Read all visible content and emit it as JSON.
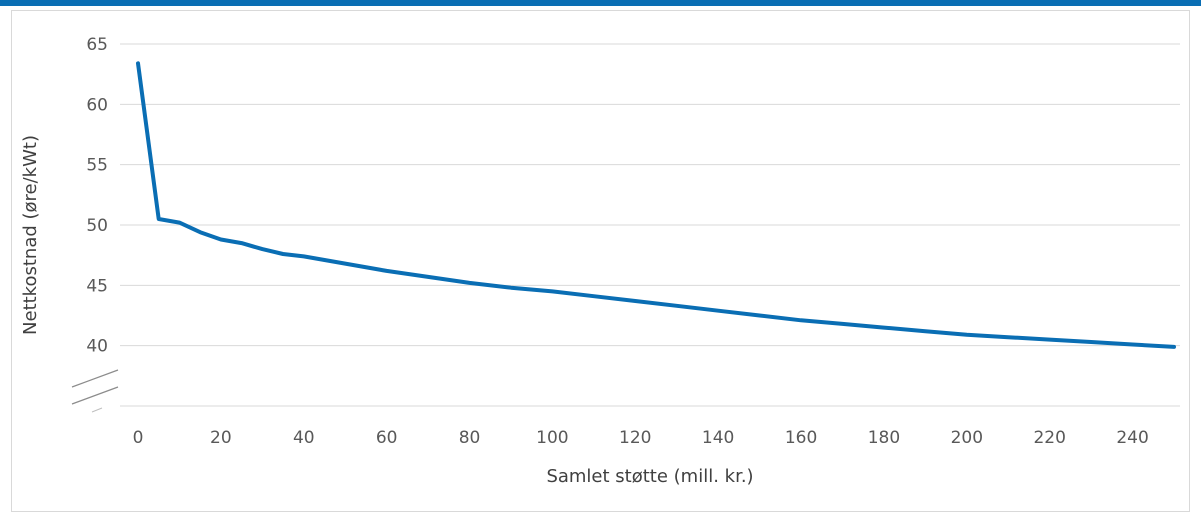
{
  "colors": {
    "accent": "#0a6eb4",
    "line": "#0a6eb4",
    "grid": "#d9d9d9",
    "text": "#595959"
  },
  "chart_data": {
    "type": "line",
    "title": "",
    "xlabel": "Samlet støtte (mill. kr.)",
    "ylabel": "Nettkostnad (øre/kWt)",
    "xlim": [
      0,
      250
    ],
    "ylim": [
      35,
      65
    ],
    "x_ticks": [
      "0",
      "20",
      "40",
      "60",
      "80",
      "100",
      "120",
      "140",
      "160",
      "180",
      "200",
      "220",
      "240"
    ],
    "y_ticks": [
      "40",
      "45",
      "50",
      "55",
      "60",
      "65"
    ],
    "y_axis_break": true,
    "grid": true,
    "legend": "none",
    "series": [
      {
        "x": [
          0,
          5,
          10,
          15,
          20,
          25,
          30,
          35,
          40,
          50,
          60,
          70,
          80,
          90,
          100,
          110,
          120,
          130,
          140,
          150,
          160,
          170,
          180,
          190,
          200,
          210,
          220,
          230,
          240,
          250
        ],
        "y": [
          63.4,
          50.5,
          50.2,
          49.4,
          48.8,
          48.5,
          48.0,
          47.6,
          47.4,
          46.8,
          46.2,
          45.7,
          45.2,
          44.8,
          44.5,
          44.1,
          43.7,
          43.3,
          42.9,
          42.5,
          42.1,
          41.8,
          41.5,
          41.2,
          40.9,
          40.7,
          40.5,
          40.3,
          40.1,
          39.9
        ]
      }
    ]
  }
}
